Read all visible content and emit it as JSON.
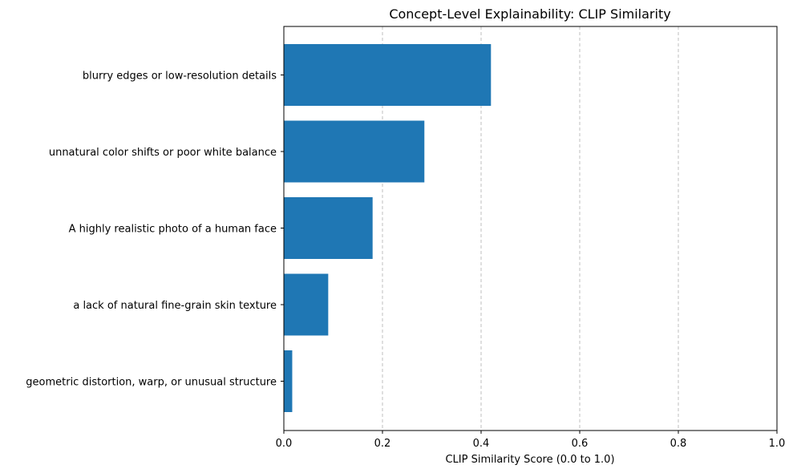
{
  "chart_data": {
    "type": "bar",
    "orientation": "horizontal",
    "title": "Concept-Level Explainability: CLIP Similarity",
    "xlabel": "CLIP Similarity Score (0.0 to 1.0)",
    "ylabel": "",
    "xlim": [
      0,
      1
    ],
    "xticks": [
      0.0,
      0.2,
      0.4,
      0.6,
      0.8,
      1.0
    ],
    "xtick_labels": [
      "0.0",
      "0.2",
      "0.4",
      "0.6",
      "0.8",
      "1.0"
    ],
    "grid": "x-axis, dashed",
    "categories": [
      "blurry edges or low-resolution details",
      "unnatural color shifts or poor white balance",
      "A highly realistic photo of a human face",
      "a lack of natural fine-grain skin texture",
      "geometric distortion, warp, or unusual structure"
    ],
    "values": [
      0.42,
      0.285,
      0.18,
      0.09,
      0.017
    ],
    "bar_color": "#1f77b4",
    "grid_color": "#b0b0b0"
  }
}
